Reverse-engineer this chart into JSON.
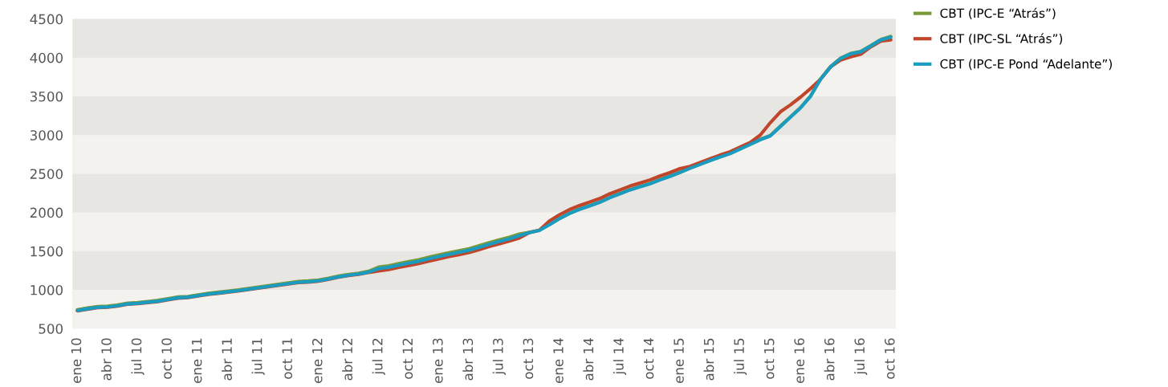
{
  "chart_data": {
    "type": "line",
    "categories": [
      "ene 10",
      null,
      null,
      "abr 10",
      null,
      null,
      "jul 10",
      null,
      null,
      "oct 10",
      null,
      null,
      "ene 11",
      null,
      null,
      "abr 11",
      null,
      null,
      "jul 11",
      null,
      null,
      "oct 11",
      null,
      null,
      "ene 12",
      null,
      null,
      "abr 12",
      null,
      null,
      "jul 12",
      null,
      null,
      "oct 12",
      null,
      null,
      "ene 13",
      null,
      null,
      "abr 13",
      null,
      null,
      "jul 13",
      null,
      null,
      "oct 13",
      null,
      null,
      "ene 14",
      null,
      null,
      "abr 14",
      null,
      null,
      "jul 14",
      null,
      null,
      "oct 14",
      null,
      null,
      "ene 15",
      null,
      null,
      "abr 15",
      null,
      null,
      "jul 15",
      null,
      null,
      "oct 15",
      null,
      null,
      "ene 16",
      null,
      null,
      "abr 16",
      null,
      null,
      "jul 16",
      null,
      null,
      "oct 16"
    ],
    "series": [
      {
        "name": "CBT (IPC-E “Atrás”)",
        "color": "#7a9a3a",
        "values": [
          743,
          765,
          784,
          790,
          805,
          828,
          836,
          850,
          864,
          885,
          908,
          915,
          935,
          956,
          970,
          985,
          1000,
          1018,
          1036,
          1054,
          1072,
          1090,
          1109,
          1115,
          1127,
          1150,
          1178,
          1200,
          1215,
          1240,
          1295,
          1312,
          1340,
          1365,
          1390,
          1422,
          1450,
          1480,
          1505,
          1532,
          1570,
          1610,
          1645,
          1680,
          1720,
          1745,
          1770,
          1845,
          1922,
          1990,
          2045,
          2090,
          2135,
          2195,
          2245,
          2295,
          2335,
          2375,
          2425,
          2470,
          2520,
          2575,
          2625,
          2675,
          2720,
          2765,
          2825,
          2885,
          2945,
          2995,
          3115,
          3235,
          3355,
          3505,
          3725,
          3885,
          3995,
          4055,
          4080,
          4155,
          4235,
          4275
        ]
      },
      {
        "name": "CBT (IPC-SL “Atrás”)",
        "color": "#c0452a",
        "values": [
          728,
          750,
          769,
          775,
          790,
          813,
          821,
          835,
          849,
          870,
          893,
          900,
          920,
          941,
          955,
          970,
          985,
          1003,
          1021,
          1039,
          1057,
          1075,
          1094,
          1100,
          1112,
          1135,
          1163,
          1185,
          1200,
          1225,
          1245,
          1262,
          1290,
          1315,
          1340,
          1372,
          1400,
          1430,
          1455,
          1482,
          1520,
          1560,
          1595,
          1630,
          1670,
          1740,
          1770,
          1890,
          1970,
          2037,
          2090,
          2135,
          2180,
          2240,
          2290,
          2340,
          2380,
          2420,
          2470,
          2515,
          2566,
          2595,
          2645,
          2695,
          2742,
          2785,
          2845,
          2905,
          3000,
          3160,
          3300,
          3390,
          3490,
          3600,
          3720,
          3880,
          3970,
          4010,
          4045,
          4140,
          4215,
          4230
        ]
      },
      {
        "name": "CBT (IPC-E Pond “Adelante”)",
        "color": "#1a9bc0",
        "values": [
          733,
          755,
          774,
          780,
          795,
          818,
          826,
          840,
          854,
          875,
          898,
          905,
          925,
          946,
          960,
          975,
          990,
          1008,
          1026,
          1044,
          1062,
          1080,
          1099,
          1105,
          1117,
          1140,
          1168,
          1190,
          1205,
          1230,
          1275,
          1292,
          1320,
          1345,
          1370,
          1402,
          1430,
          1460,
          1485,
          1512,
          1550,
          1590,
          1625,
          1660,
          1700,
          1740,
          1768,
          1840,
          1920,
          1987,
          2040,
          2085,
          2130,
          2190,
          2240,
          2290,
          2330,
          2370,
          2420,
          2465,
          2516,
          2570,
          2620,
          2670,
          2717,
          2760,
          2820,
          2880,
          2940,
          2990,
          3110,
          3230,
          3350,
          3500,
          3720,
          3880,
          3990,
          4050,
          4075,
          4150,
          4230,
          4265
        ]
      }
    ],
    "ylim": [
      500,
      4500
    ],
    "yticks": [
      500,
      1000,
      1500,
      2000,
      2500,
      3000,
      3500,
      4000,
      4500
    ],
    "bands": [
      {
        "axis": "y",
        "from": 500,
        "to": 1000,
        "color": "#f3f2ee"
      },
      {
        "axis": "y",
        "from": 1500,
        "to": 2000,
        "color": "#f3f2ee"
      },
      {
        "axis": "y",
        "from": 2500,
        "to": 3000,
        "color": "#f3f2ee"
      },
      {
        "axis": "y",
        "from": 3500,
        "to": 4000,
        "color": "#f3f2ee"
      }
    ],
    "grid": false,
    "legend": "top right",
    "marker": "none",
    "line_style": "solid"
  }
}
